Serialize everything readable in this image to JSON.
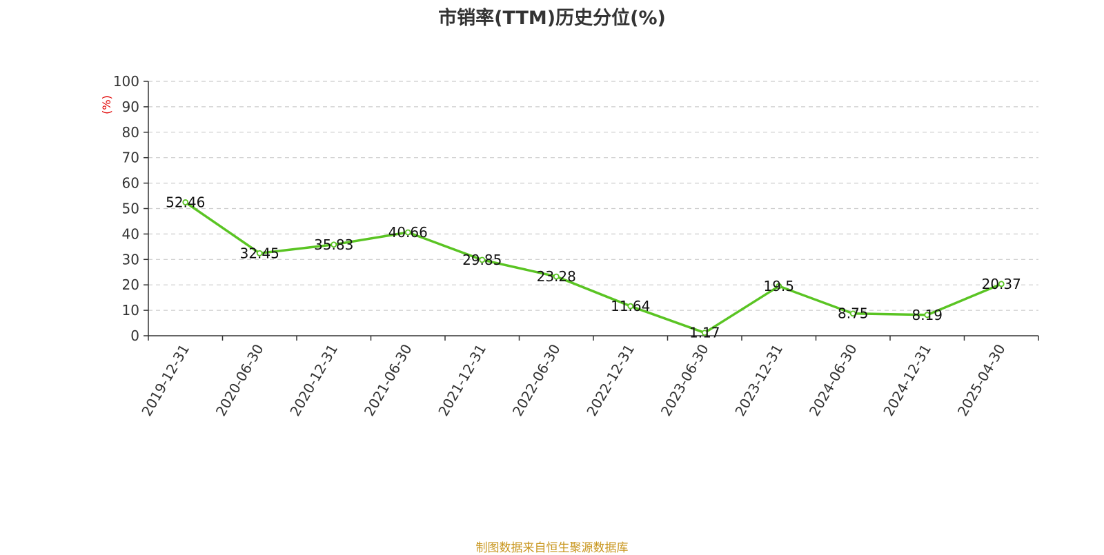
{
  "chart_data": {
    "type": "line",
    "title": "市销率(TTM)历史分位(%)",
    "ylabel": "(%)",
    "xlabel": "",
    "ylim": [
      0,
      100
    ],
    "yticks": [
      0,
      10,
      20,
      30,
      40,
      50,
      60,
      70,
      80,
      90,
      100
    ],
    "grid": true,
    "categories": [
      "2019-12-31",
      "2020-06-30",
      "2020-12-31",
      "2021-06-30",
      "2021-12-31",
      "2022-06-30",
      "2022-12-31",
      "2023-06-30",
      "2023-12-31",
      "2024-06-30",
      "2024-12-31",
      "2025-04-30"
    ],
    "series": [
      {
        "values": [
          52.46,
          32.45,
          35.83,
          40.66,
          29.85,
          23.28,
          11.64,
          1.17,
          19.5,
          8.75,
          8.19,
          20.37
        ]
      }
    ],
    "data_labels": [
      "52.46",
      "32.45",
      "35.83",
      "40.66",
      "29.85",
      "23.28",
      "11.64",
      "1.17",
      "19.5",
      "8.75",
      "8.19",
      "20.37"
    ]
  },
  "colors": {
    "line": "#5ac423",
    "ylabel": "#e00000",
    "source": "#c8961e",
    "grid": "#cccccc"
  },
  "source_note": "制图数据来自恒生聚源数据库"
}
